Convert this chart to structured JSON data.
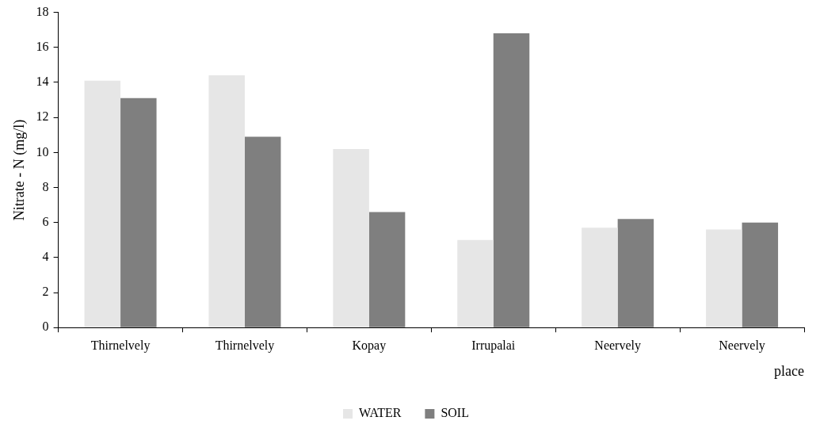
{
  "chart_data": {
    "type": "bar",
    "xlabel": "place",
    "ylabel": "Nitrate - N (mg/l)",
    "categories": [
      "Thirnelvely",
      "Thirnelvely",
      "Kopay",
      "Irrupalai",
      "Neervely",
      "Neervely"
    ],
    "series": [
      {
        "name": "WATER",
        "color": "#e6e6e6",
        "values": [
          14.1,
          14.4,
          10.2,
          5.0,
          5.7,
          5.6
        ]
      },
      {
        "name": "SOIL",
        "color": "#7f7f7f",
        "values": [
          13.1,
          10.9,
          6.6,
          16.8,
          6.2,
          6.0
        ]
      }
    ],
    "ylim": [
      0,
      18
    ],
    "yticks": [
      0,
      2,
      4,
      6,
      8,
      10,
      12,
      14,
      16,
      18
    ],
    "grid": false,
    "legend": "bottom"
  }
}
